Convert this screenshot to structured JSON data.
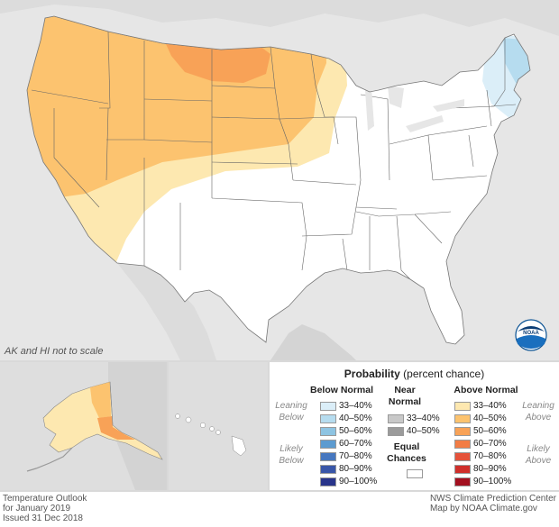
{
  "map": {
    "scale_note": "AK and HI not to scale",
    "logo_text": "NOAA"
  },
  "legend": {
    "title": "Probability",
    "subtitle": "(percent chance)",
    "below": {
      "header": "Below Normal",
      "leaning_label": "Leaning Below",
      "likely_label": "Likely Below",
      "items": [
        {
          "label": "33–40%",
          "color": "#dbeef8"
        },
        {
          "label": "40–50%",
          "color": "#b6dcef"
        },
        {
          "label": "50–60%",
          "color": "#8ec4e2"
        },
        {
          "label": "60–70%",
          "color": "#5c9bd0"
        },
        {
          "label": "70–80%",
          "color": "#4677bf"
        },
        {
          "label": "80–90%",
          "color": "#3956a8"
        },
        {
          "label": "90–100%",
          "color": "#28348a"
        }
      ]
    },
    "near": {
      "header": "Near Normal",
      "items": [
        {
          "label": "33–40%",
          "color": "#c8c8c8"
        },
        {
          "label": "40–50%",
          "color": "#9b9b9b"
        }
      ]
    },
    "equal": {
      "header": "Equal Chances",
      "color": "#ffffff"
    },
    "above": {
      "header": "Above Normal",
      "leaning_label": "Leaning Above",
      "likely_label": "Likely Above",
      "items": [
        {
          "label": "33–40%",
          "color": "#fde8b0"
        },
        {
          "label": "40–50%",
          "color": "#fcc36f"
        },
        {
          "label": "50–60%",
          "color": "#f8a257"
        },
        {
          "label": "60–70%",
          "color": "#f27c45"
        },
        {
          "label": "70–80%",
          "color": "#e5523a"
        },
        {
          "label": "80–90%",
          "color": "#cf2f2b"
        },
        {
          "label": "90–100%",
          "color": "#a3101f"
        }
      ]
    }
  },
  "footer": {
    "left": [
      "Temperature Outlook",
      "for January 2019",
      "Issued 31 Dec 2018"
    ],
    "right": [
      "NWS Climate Prediction Center",
      "Map by NOAA Climate.gov"
    ]
  }
}
